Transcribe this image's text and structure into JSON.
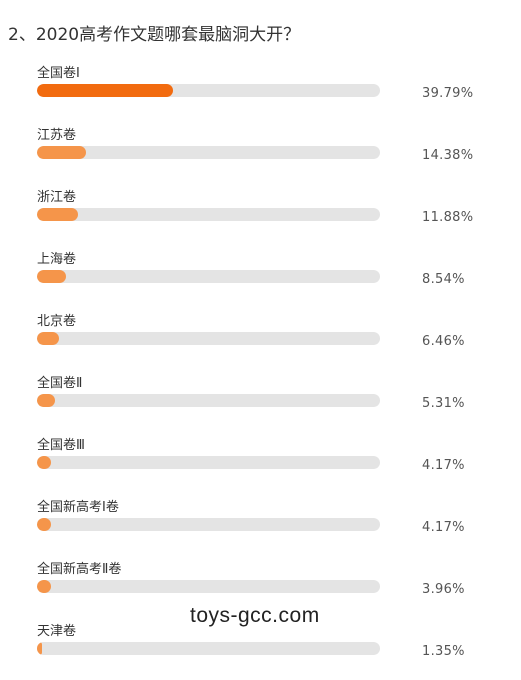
{
  "question": "2、2020高考作文题哪套最脑洞大开？",
  "watermark": "toys-gcc.com",
  "colors": {
    "top_bar": "#f26b0f",
    "bar": "#f5954a",
    "track": "#e4e4e4"
  },
  "chart_data": {
    "type": "bar",
    "orientation": "horizontal",
    "title": "2、2020高考作文题哪套最脑洞大开？",
    "categories": [
      "全国卷Ⅰ",
      "江苏卷",
      "浙江卷",
      "上海卷",
      "北京卷",
      "全国卷Ⅱ",
      "全国卷Ⅲ",
      "全国新高考Ⅰ卷",
      "全国新高考Ⅱ卷",
      "天津卷"
    ],
    "values": [
      39.79,
      14.38,
      11.88,
      8.54,
      6.46,
      5.31,
      4.17,
      4.17,
      3.96,
      1.35
    ],
    "value_labels": [
      "39.79%",
      "14.38%",
      "11.88%",
      "8.54%",
      "6.46%",
      "5.31%",
      "4.17%",
      "4.17%",
      "3.96%",
      "1.35%"
    ],
    "xlim": [
      0,
      100
    ],
    "grid": false,
    "legend": "none"
  }
}
